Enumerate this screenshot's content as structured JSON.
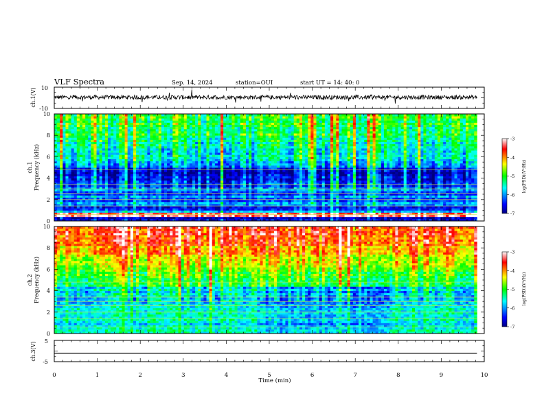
{
  "header": {
    "title": "VLF Spectra",
    "date": "Sep. 14, 2024",
    "station": "station=OUI",
    "start": "start  UT =   14: 40: 0"
  },
  "chart_data": [
    {
      "type": "line",
      "panel": "ch1-waveform",
      "ylabel": "ch.1(V)",
      "ylim": [
        -10,
        10
      ],
      "yticks": [
        "10",
        "-10"
      ],
      "description_values": {
        "baseline": 0.5,
        "noise_amplitude": 2
      }
    },
    {
      "type": "heatmap",
      "panel": "ch1-spectrogram",
      "ylabel": "ch.1\nFrequency (kHz)",
      "ylabel_lines": [
        "ch.1",
        "Frequency (kHz)"
      ],
      "ylim": [
        0,
        10
      ],
      "yticks": [
        "0",
        "2",
        "4",
        "6",
        "8",
        "10"
      ],
      "colorbar": {
        "label": "log(PSD)(V²/Hz)",
        "ticks": [
          "-3",
          "-4",
          "-5",
          "-6",
          "-7"
        ],
        "range": [
          -7,
          -3
        ]
      }
    },
    {
      "type": "heatmap",
      "panel": "ch2-spectrogram",
      "ylabel": "ch.2\nFrequency (kHz)",
      "ylabel_lines": [
        "ch.2",
        "Frequency (kHz)"
      ],
      "ylim": [
        0,
        10
      ],
      "yticks": [
        "0",
        "2",
        "4",
        "6",
        "8",
        "10"
      ],
      "colorbar": {
        "label": "log(PSD)(V²/Hz)",
        "ticks": [
          "-3",
          "-4",
          "-5",
          "-6",
          "-7"
        ],
        "range": [
          -7,
          -3
        ]
      }
    },
    {
      "type": "line",
      "panel": "ch3-waveform",
      "ylabel": "ch.3(V)",
      "ylim": [
        -5,
        5
      ],
      "yticks": [
        "5",
        "-5"
      ],
      "description_values": {
        "constant": -1
      }
    }
  ],
  "xaxis": {
    "label": "Time (min)",
    "ticks": [
      "0",
      "1",
      "2",
      "3",
      "4",
      "5",
      "6",
      "7",
      "8",
      "9",
      "10"
    ],
    "range": [
      0,
      10
    ],
    "data_end": 9.83
  }
}
